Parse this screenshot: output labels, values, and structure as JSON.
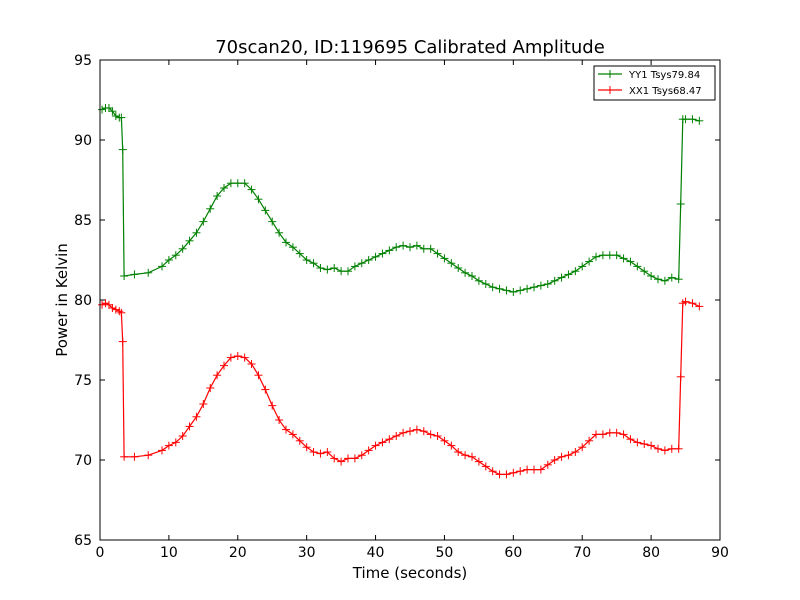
{
  "chart_data": {
    "type": "line",
    "title": "70scan20, ID:119695 Calibrated Amplitude",
    "xlabel": "Time (seconds)",
    "ylabel": "Power in Kelvin",
    "xlim": [
      0,
      90
    ],
    "ylim": [
      65,
      95
    ],
    "x_ticks": [
      0,
      10,
      20,
      30,
      40,
      50,
      60,
      70,
      80,
      90
    ],
    "y_ticks": [
      65,
      70,
      75,
      80,
      85,
      90,
      95
    ],
    "grid": false,
    "legend_position": "top-right",
    "marker": "+",
    "series": [
      {
        "name": "YY1 Tsys79.84",
        "color": "#008000",
        "points": [
          [
            0.3,
            91.9
          ],
          [
            0.8,
            92.0
          ],
          [
            1.3,
            92.0
          ],
          [
            1.8,
            91.8
          ],
          [
            2.3,
            91.5
          ],
          [
            2.8,
            91.4
          ],
          [
            3.1,
            91.4
          ],
          [
            3.3,
            89.4
          ],
          [
            3.5,
            81.5
          ],
          [
            5,
            81.6
          ],
          [
            7,
            81.7
          ],
          [
            9,
            82.1
          ],
          [
            10,
            82.5
          ],
          [
            11,
            82.8
          ],
          [
            12,
            83.2
          ],
          [
            13,
            83.7
          ],
          [
            14,
            84.2
          ],
          [
            15,
            84.9
          ],
          [
            16,
            85.7
          ],
          [
            17,
            86.5
          ],
          [
            18,
            87.0
          ],
          [
            19,
            87.3
          ],
          [
            20,
            87.3
          ],
          [
            21,
            87.3
          ],
          [
            22,
            86.9
          ],
          [
            23,
            86.3
          ],
          [
            24,
            85.6
          ],
          [
            25,
            84.9
          ],
          [
            26,
            84.2
          ],
          [
            27,
            83.6
          ],
          [
            28,
            83.3
          ],
          [
            29,
            82.9
          ],
          [
            30,
            82.5
          ],
          [
            31,
            82.3
          ],
          [
            32,
            82.0
          ],
          [
            33,
            81.9
          ],
          [
            34,
            82.0
          ],
          [
            35,
            81.8
          ],
          [
            36,
            81.8
          ],
          [
            37,
            82.1
          ],
          [
            38,
            82.3
          ],
          [
            39,
            82.5
          ],
          [
            40,
            82.7
          ],
          [
            41,
            82.9
          ],
          [
            42,
            83.1
          ],
          [
            43,
            83.3
          ],
          [
            44,
            83.4
          ],
          [
            45,
            83.3
          ],
          [
            46,
            83.4
          ],
          [
            47,
            83.2
          ],
          [
            48,
            83.2
          ],
          [
            49,
            82.9
          ],
          [
            50,
            82.6
          ],
          [
            51,
            82.3
          ],
          [
            52,
            82.0
          ],
          [
            53,
            81.7
          ],
          [
            54,
            81.5
          ],
          [
            55,
            81.2
          ],
          [
            56,
            81.0
          ],
          [
            57,
            80.8
          ],
          [
            58,
            80.7
          ],
          [
            59,
            80.6
          ],
          [
            60,
            80.5
          ],
          [
            61,
            80.6
          ],
          [
            62,
            80.7
          ],
          [
            63,
            80.8
          ],
          [
            64,
            80.9
          ],
          [
            65,
            81.0
          ],
          [
            66,
            81.2
          ],
          [
            67,
            81.4
          ],
          [
            68,
            81.6
          ],
          [
            69,
            81.8
          ],
          [
            70,
            82.1
          ],
          [
            71,
            82.4
          ],
          [
            72,
            82.7
          ],
          [
            73,
            82.8
          ],
          [
            74,
            82.8
          ],
          [
            75,
            82.8
          ],
          [
            76,
            82.6
          ],
          [
            77,
            82.4
          ],
          [
            78,
            82.1
          ],
          [
            79,
            81.8
          ],
          [
            80,
            81.5
          ],
          [
            81,
            81.3
          ],
          [
            82,
            81.2
          ],
          [
            83,
            81.4
          ],
          [
            84,
            81.3
          ],
          [
            84.3,
            86.0
          ],
          [
            84.6,
            91.3
          ],
          [
            85,
            91.3
          ],
          [
            86,
            91.3
          ],
          [
            87,
            91.2
          ]
        ]
      },
      {
        "name": "XX1 Tsys68.47",
        "color": "#ff0000",
        "points": [
          [
            0.3,
            79.7
          ],
          [
            0.8,
            79.8
          ],
          [
            1.3,
            79.7
          ],
          [
            1.8,
            79.5
          ],
          [
            2.3,
            79.4
          ],
          [
            2.8,
            79.3
          ],
          [
            3.1,
            79.2
          ],
          [
            3.3,
            77.4
          ],
          [
            3.5,
            70.2
          ],
          [
            5,
            70.2
          ],
          [
            7,
            70.3
          ],
          [
            9,
            70.6
          ],
          [
            10,
            70.9
          ],
          [
            11,
            71.1
          ],
          [
            12,
            71.5
          ],
          [
            13,
            72.1
          ],
          [
            14,
            72.7
          ],
          [
            15,
            73.5
          ],
          [
            16,
            74.5
          ],
          [
            17,
            75.3
          ],
          [
            18,
            75.9
          ],
          [
            19,
            76.4
          ],
          [
            20,
            76.5
          ],
          [
            21,
            76.4
          ],
          [
            22,
            76.0
          ],
          [
            23,
            75.3
          ],
          [
            24,
            74.4
          ],
          [
            25,
            73.4
          ],
          [
            26,
            72.5
          ],
          [
            27,
            71.9
          ],
          [
            28,
            71.6
          ],
          [
            29,
            71.2
          ],
          [
            30,
            70.8
          ],
          [
            31,
            70.5
          ],
          [
            32,
            70.4
          ],
          [
            33,
            70.5
          ],
          [
            34,
            70.1
          ],
          [
            35,
            69.9
          ],
          [
            36,
            70.1
          ],
          [
            37,
            70.1
          ],
          [
            38,
            70.3
          ],
          [
            39,
            70.6
          ],
          [
            40,
            70.9
          ],
          [
            41,
            71.1
          ],
          [
            42,
            71.3
          ],
          [
            43,
            71.5
          ],
          [
            44,
            71.7
          ],
          [
            45,
            71.8
          ],
          [
            46,
            71.9
          ],
          [
            47,
            71.8
          ],
          [
            48,
            71.6
          ],
          [
            49,
            71.5
          ],
          [
            50,
            71.2
          ],
          [
            51,
            70.9
          ],
          [
            52,
            70.5
          ],
          [
            53,
            70.3
          ],
          [
            54,
            70.2
          ],
          [
            55,
            69.9
          ],
          [
            56,
            69.6
          ],
          [
            57,
            69.3
          ],
          [
            58,
            69.1
          ],
          [
            59,
            69.1
          ],
          [
            60,
            69.2
          ],
          [
            61,
            69.3
          ],
          [
            62,
            69.4
          ],
          [
            63,
            69.4
          ],
          [
            64,
            69.4
          ],
          [
            65,
            69.7
          ],
          [
            66,
            70.0
          ],
          [
            67,
            70.2
          ],
          [
            68,
            70.3
          ],
          [
            69,
            70.5
          ],
          [
            70,
            70.8
          ],
          [
            71,
            71.2
          ],
          [
            72,
            71.6
          ],
          [
            73,
            71.6
          ],
          [
            74,
            71.7
          ],
          [
            75,
            71.7
          ],
          [
            76,
            71.6
          ],
          [
            77,
            71.3
          ],
          [
            78,
            71.1
          ],
          [
            79,
            71.0
          ],
          [
            80,
            70.9
          ],
          [
            81,
            70.7
          ],
          [
            82,
            70.6
          ],
          [
            83,
            70.7
          ],
          [
            84,
            70.7
          ],
          [
            84.3,
            75.2
          ],
          [
            84.6,
            79.8
          ],
          [
            85,
            79.9
          ],
          [
            86,
            79.8
          ],
          [
            87,
            79.6
          ]
        ]
      }
    ]
  }
}
